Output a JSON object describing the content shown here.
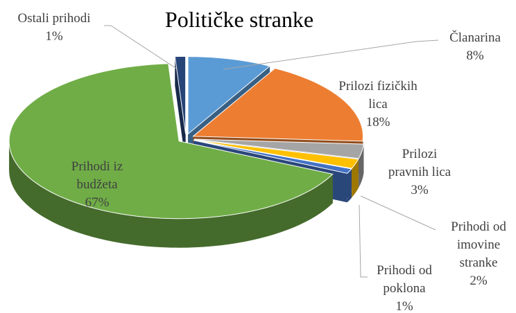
{
  "chart_data": {
    "type": "pie",
    "title": "Političke stranke",
    "categories": [
      "Članarina",
      "Prilozi fizičkih lica",
      "Prilozi pravnih lica",
      "Prihodi od imovine stranke",
      "Prihodi od poklona",
      "Prihodi iz budžeta",
      "Ostali prihodi"
    ],
    "values": [
      8,
      18,
      3,
      2,
      1,
      67,
      1
    ],
    "value_labels": [
      "8%",
      "18%",
      "3%",
      "2%",
      "1%",
      "67%",
      "1%"
    ],
    "colors": [
      "#5b9bd5",
      "#ed7d31",
      "#a5a5a5",
      "#ffc000",
      "#4472c4",
      "#70ad47",
      "#264478"
    ]
  }
}
